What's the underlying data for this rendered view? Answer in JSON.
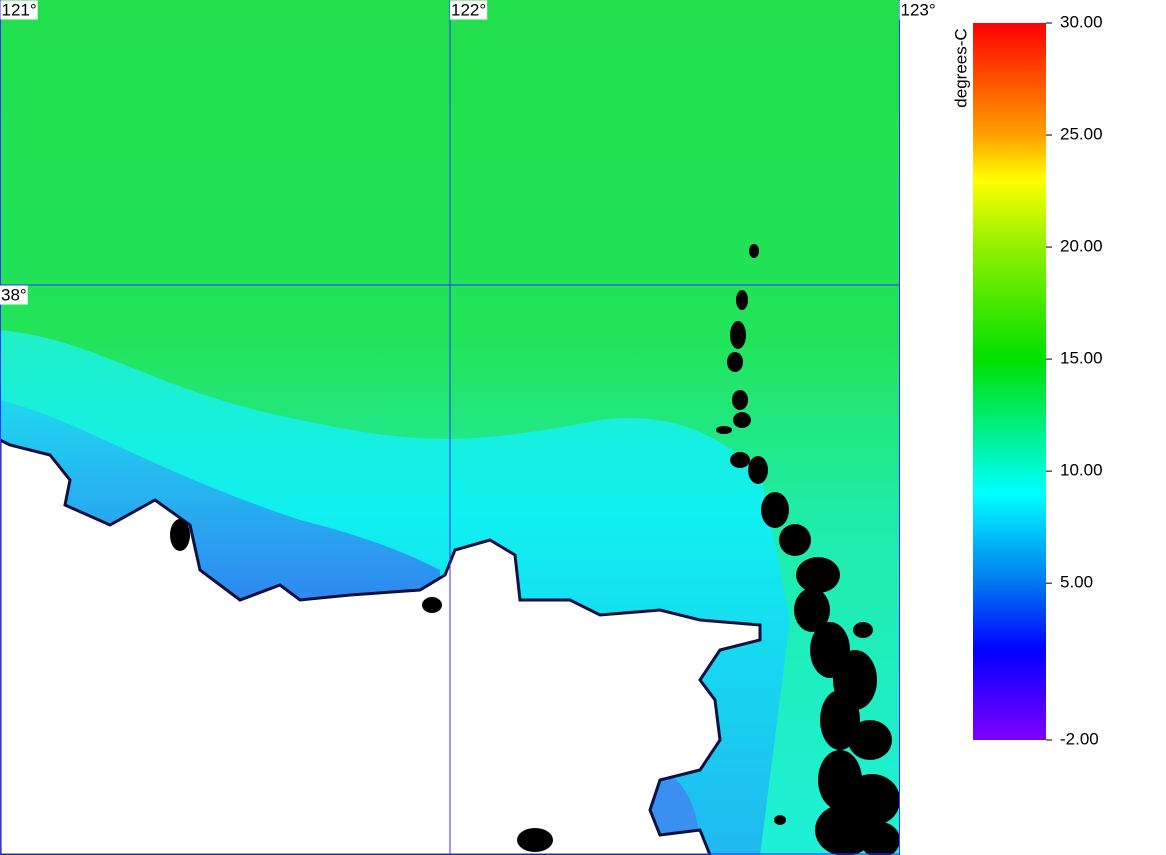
{
  "map": {
    "xlim": [
      121,
      123
    ],
    "ylim": [
      37.0,
      38.5
    ],
    "lon_labels": [
      {
        "value": 121,
        "label": "121°"
      },
      {
        "value": 122,
        "label": "122°"
      },
      {
        "value": 123,
        "label": "123°"
      }
    ],
    "lat_labels": [
      {
        "value": 38,
        "label": "38°"
      }
    ],
    "grid_color": "#3333ff",
    "colorbar": {
      "title": "degrees-C",
      "lim": [
        -2,
        30
      ],
      "ticks": [
        {
          "value": 30,
          "label": "30.00"
        },
        {
          "value": 25,
          "label": "25.00"
        },
        {
          "value": 20,
          "label": "20.00"
        },
        {
          "value": 15,
          "label": "15.00"
        },
        {
          "value": 10,
          "label": "10.00"
        },
        {
          "value": 5,
          "label": "5.00"
        },
        {
          "value": -2,
          "label": "-2.00"
        }
      ],
      "colormap": [
        {
          "value": -2,
          "color": "#8000ff"
        },
        {
          "value": 2,
          "color": "#0000ff"
        },
        {
          "value": 5,
          "color": "#0078f0"
        },
        {
          "value": 9,
          "color": "#00ffff"
        },
        {
          "value": 15,
          "color": "#00e000"
        },
        {
          "value": 20,
          "color": "#90f000"
        },
        {
          "value": 23,
          "color": "#ffff00"
        },
        {
          "value": 25,
          "color": "#ffa000"
        },
        {
          "value": 30,
          "color": "#ff0000"
        }
      ]
    }
  }
}
